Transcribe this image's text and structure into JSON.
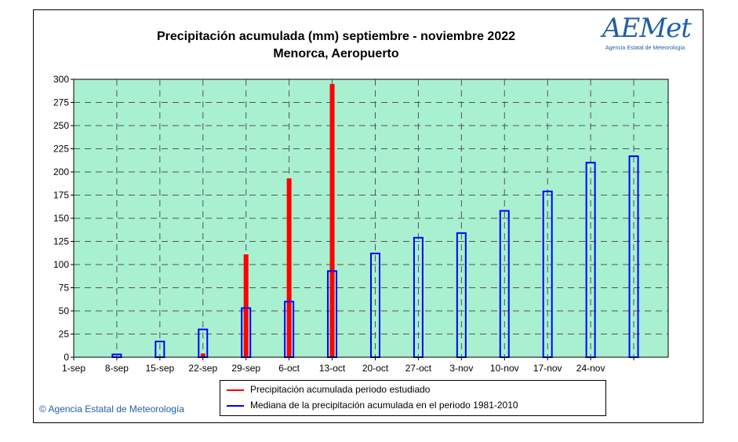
{
  "header": {
    "title": "Precipitación acumulada (mm) septiembre - noviembre 2022",
    "subtitle": "Menorca, Aeropuerto"
  },
  "logo": {
    "text": "AEMet",
    "subtitle": "Agencia Estatal de Meteorología"
  },
  "footer": {
    "copyright": "© Agencia Estatal de Meteorología"
  },
  "legend": {
    "items": [
      {
        "label": "Precipitación acumulada periodo estudiado",
        "color": "#ff0000"
      },
      {
        "label": "Mediana de la precipitación acumulada en el periodo 1981-2010",
        "color": "#0000ff"
      }
    ]
  },
  "colors": {
    "plot_background": "#a8f0d0",
    "grid": "#555555",
    "studied": "#ff0000",
    "median": "#0000ff"
  },
  "chart_data": {
    "type": "bar",
    "title": "Precipitación acumulada (mm) septiembre - noviembre 2022",
    "subtitle": "Menorca, Aeropuerto",
    "categories": [
      "1-sep",
      "8-sep",
      "15-sep",
      "22-sep",
      "29-sep",
      "6-oct",
      "13-oct",
      "20-oct",
      "27-oct",
      "3-nov",
      "10-nov",
      "17-nov",
      "24-nov",
      ""
    ],
    "series": [
      {
        "name": "Precipitación acumulada periodo estudiado",
        "color": "#ff0000",
        "style": "filled",
        "values": [
          null,
          0,
          1,
          4,
          111,
          193,
          295,
          null,
          null,
          null,
          null,
          null,
          null,
          null
        ]
      },
      {
        "name": "Mediana de la precipitación acumulada en el periodo 1981-2010",
        "color": "#0000ff",
        "style": "outline",
        "values": [
          null,
          3,
          17,
          30,
          53,
          60,
          93,
          112,
          129,
          134,
          158,
          179,
          210,
          217
        ]
      }
    ],
    "yticks": [
      0,
      25,
      50,
      75,
      100,
      125,
      150,
      175,
      200,
      225,
      250,
      275,
      300
    ],
    "ylim": [
      0,
      300
    ],
    "grid": true,
    "legend_position": "bottom-center"
  }
}
